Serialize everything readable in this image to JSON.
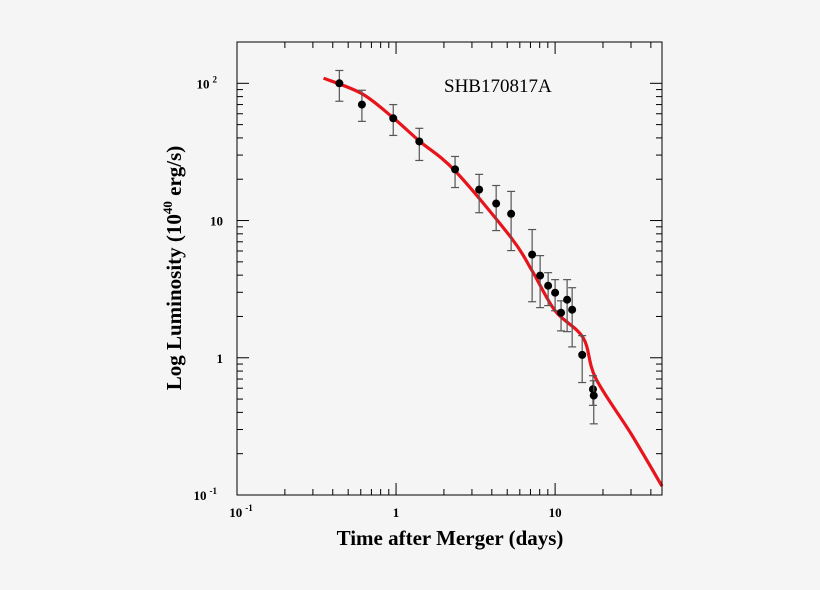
{
  "chart_data": {
    "type": "scatter",
    "title": "SHB170817A",
    "xlabel": "Time after Merger (days)",
    "ylabel": {
      "text": "Log Luminosity (10",
      "sup": "40",
      "after": " erg/s)"
    },
    "xscale": "log",
    "yscale": "log",
    "xlim": [
      0.1,
      47
    ],
    "ylim": [
      0.1,
      200
    ],
    "grid": false,
    "x_ticks": [
      {
        "value": 0.1,
        "base": "10",
        "exp": "-1"
      },
      {
        "value": 1,
        "base": "1",
        "exp": ""
      },
      {
        "value": 10,
        "base": "10",
        "exp": ""
      }
    ],
    "y_ticks": [
      {
        "value": 0.1,
        "base": "10",
        "exp": "-1"
      },
      {
        "value": 1,
        "base": "1",
        "exp": ""
      },
      {
        "value": 10,
        "base": "10",
        "exp": ""
      },
      {
        "value": 100,
        "base": "10",
        "exp": "2"
      }
    ],
    "series": [
      {
        "kind": "points",
        "color": "#000000",
        "x": [
          0.44,
          0.61,
          0.96,
          1.4,
          2.35,
          3.33,
          4.26,
          5.29,
          7.17,
          8.05,
          9.04,
          10.0,
          10.9,
          11.9,
          12.8,
          14.8,
          17.3,
          17.5
        ],
        "y": [
          100,
          70,
          55.6,
          37.7,
          23.6,
          16.8,
          13.3,
          11.2,
          5.65,
          3.97,
          3.35,
          2.98,
          2.13,
          2.65,
          2.24,
          1.05,
          0.59,
          0.53
        ],
        "y_low": [
          74,
          52.8,
          41.7,
          27.4,
          17.4,
          11.4,
          8.45,
          6.04,
          2.56,
          2.32,
          2.4,
          2.2,
          1.57,
          1.55,
          1.2,
          0.66,
          0.45,
          0.33
        ],
        "y_high": [
          124,
          89,
          70,
          47,
          29.3,
          21.7,
          18,
          16.3,
          8.6,
          5.55,
          4.17,
          3.71,
          2.6,
          3.71,
          3.24,
          1.45,
          0.74,
          0.68
        ]
      },
      {
        "kind": "curve",
        "color": "#e8141c",
        "x": [
          0.35,
          0.61,
          0.96,
          1.4,
          2.35,
          5.29,
          7.17,
          10,
          15,
          18,
          30,
          47
        ],
        "y": [
          109,
          84,
          56,
          38,
          23,
          7.5,
          4.3,
          2.2,
          1.4,
          0.71,
          0.28,
          0.116
        ]
      }
    ]
  }
}
